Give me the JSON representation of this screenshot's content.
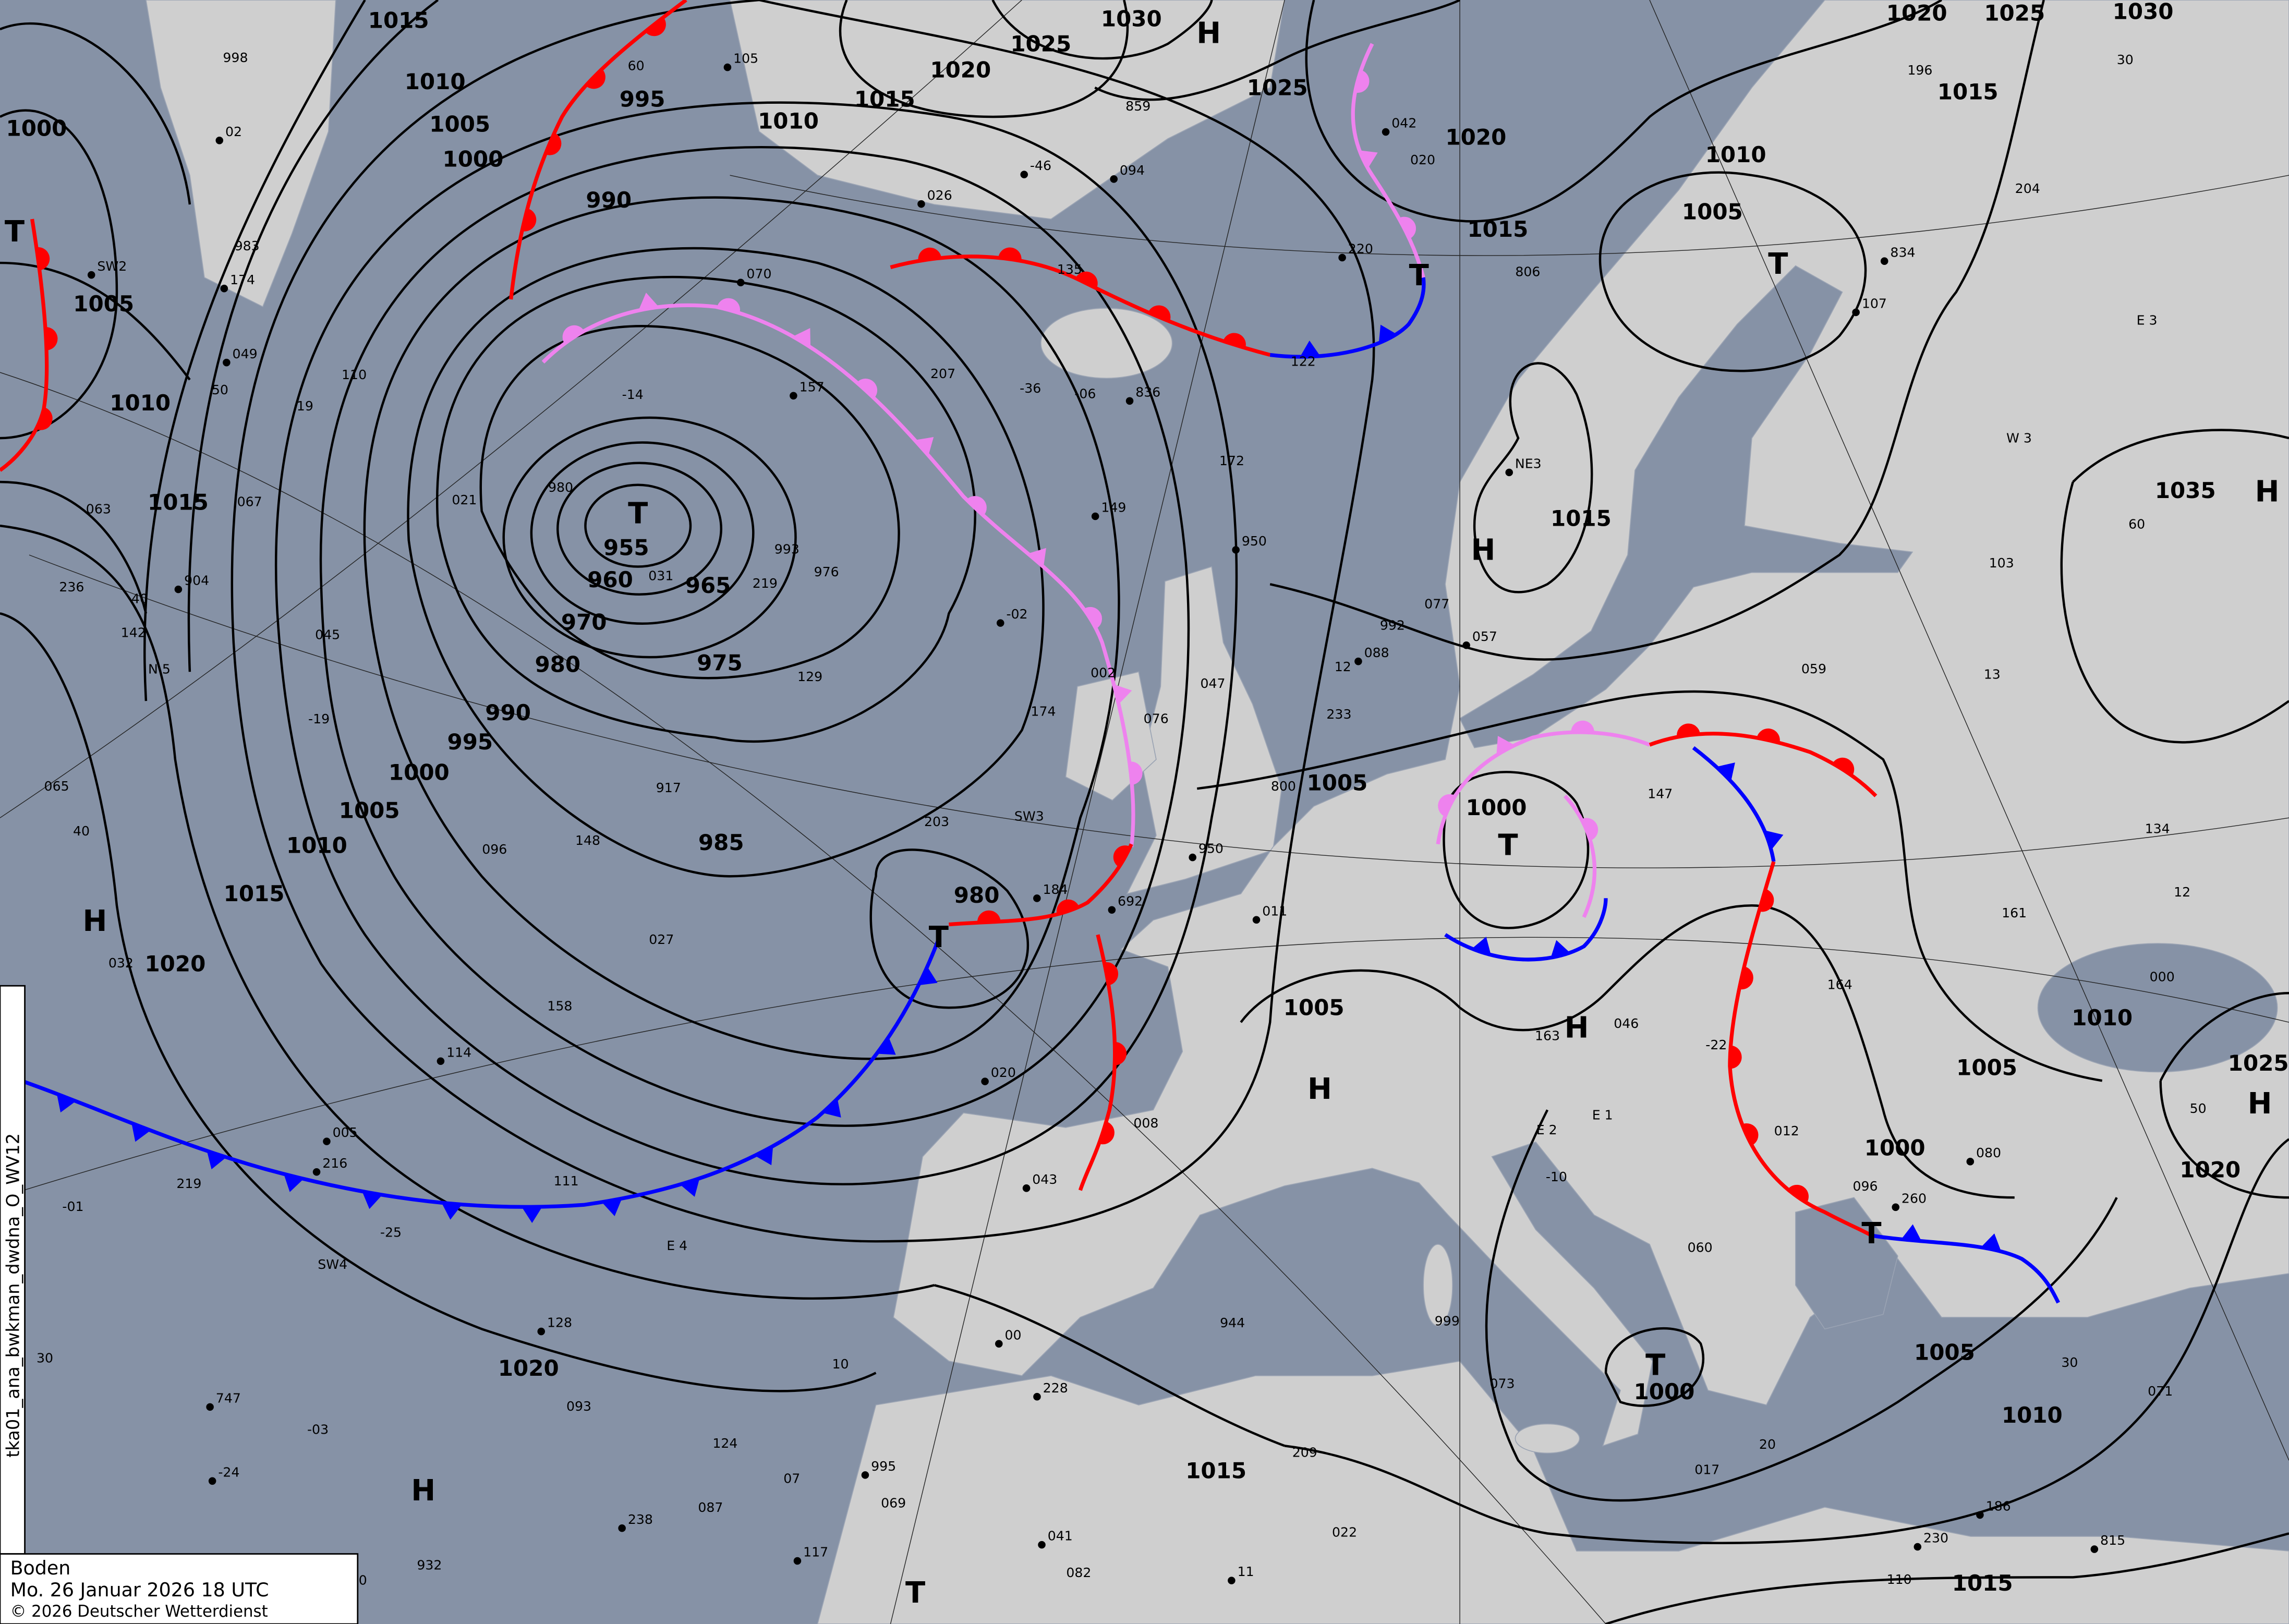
{
  "map": {
    "title": "Boden",
    "valid_time": "Mo. 26 Januar 2026 18 UTC",
    "copyright": "© 2026 Deutscher Wetterdienst",
    "product_id": "tka01_ana_bwkman_dwdna_O_WV12",
    "colors": {
      "sea": "#8692a6",
      "land": "#cfcfcf",
      "isobar": "#000000",
      "warm_front": "#ff0000",
      "cold_front": "#0000ff",
      "occlusion": "#ee82ee"
    },
    "isobar_labels": [
      "1015",
      "1010",
      "1005",
      "1000",
      "995",
      "990",
      "1000",
      "1005",
      "1010",
      "1015",
      "955",
      "960",
      "965",
      "970",
      "975",
      "980",
      "990",
      "995",
      "1000",
      "1005",
      "1010",
      "1015",
      "1020",
      "985",
      "980",
      "1020",
      "1015",
      "1010",
      "1025",
      "1030",
      "1025",
      "1020",
      "1015",
      "1010",
      "1005",
      "1020",
      "1025",
      "1030",
      "1015",
      "1035",
      "1015",
      "1005",
      "1000",
      "1005",
      "1000",
      "1000",
      "1005",
      "1010",
      "1025",
      "1020",
      "1005",
      "1010",
      "1015",
      "1015",
      "1020"
    ],
    "pressure_centers": [
      "H",
      "T",
      "T",
      "H",
      "H",
      "T",
      "T",
      "T",
      "T",
      "H",
      "H",
      "T",
      "T",
      "H",
      "H",
      "H",
      "T"
    ],
    "grid_labels": [
      "60",
      "50",
      "40",
      "40",
      "30",
      "30",
      "10",
      "20",
      "30",
      "60",
      "50",
      "40"
    ],
    "station_samples": [
      "692",
      "19",
      "SW3",
      "747",
      "12",
      "E 4",
      "836",
      "806",
      "800",
      "815",
      "-19",
      "E 3",
      "NE3",
      "932",
      "-36",
      "950",
      "-25",
      "976",
      "-24",
      "093",
      "-06",
      "088",
      "-22",
      "110",
      "-46",
      "N 5",
      "163",
      "00",
      "174",
      "-14",
      "230",
      "219",
      "-10",
      "238",
      "236",
      "233",
      "228",
      "SW4",
      "W 3",
      "SW2",
      "E 1",
      "073",
      "128",
      "998",
      "944",
      "834",
      "859",
      "917",
      "904",
      "980",
      "020",
      "026",
      "002",
      "-01",
      "043",
      "07",
      "046",
      "02",
      "021",
      "032",
      "-02",
      "047",
      "-03",
      "041",
      "13",
      "008",
      "11",
      "999",
      "12",
      "057",
      "060",
      "076",
      "080",
      "082",
      "096",
      "105",
      "134",
      "142",
      "114",
      "111",
      "124",
      "107",
      "129",
      "161",
      "174",
      "203",
      "219",
      "184",
      "204",
      "207",
      "216",
      "196",
      "172",
      "157",
      "147",
      "158",
      "186",
      "069",
      "059",
      "049",
      "022",
      "031",
      "070",
      "012",
      "027",
      "005",
      "000",
      "993",
      "011",
      "045",
      "096",
      "950",
      "992",
      "983",
      "995",
      "017",
      "103",
      "117",
      "164",
      "135",
      "149",
      "148",
      "122",
      "094",
      "065",
      "067",
      "020",
      "071",
      "110",
      "260",
      "209",
      "063",
      "042",
      "077",
      "087",
      "220",
      "E 2"
    ]
  }
}
